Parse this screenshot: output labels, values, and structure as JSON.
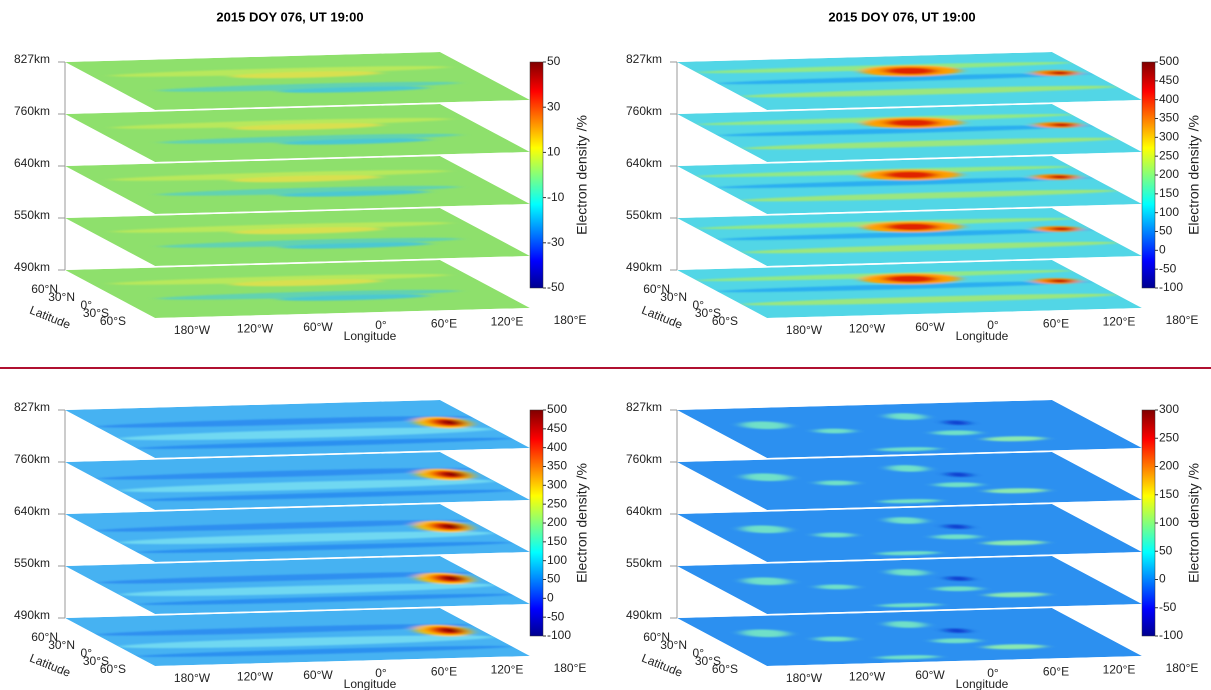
{
  "panels": [
    {
      "title": "2015 DOY 076, UT 19:00",
      "altitudes": [
        "827km",
        "760km",
        "640km",
        "550km",
        "490km"
      ],
      "latitude_label": "Latitude",
      "latitude_ticks": [
        "60°N",
        "30°N",
        "0°",
        "30°S",
        "60°S"
      ],
      "longitude_label": "Longitude",
      "longitude_ticks": [
        "180°W",
        "120°W",
        "60°W",
        "0°",
        "60°E",
        "120°E",
        "180°E"
      ],
      "colorbar_label": "Electron density /%",
      "colorbar_ticks": [
        50,
        30,
        10,
        -10,
        -30,
        -50
      ]
    },
    {
      "title": "2015 DOY 076, UT 19:00",
      "altitudes": [
        "827km",
        "760km",
        "640km",
        "550km",
        "490km"
      ],
      "latitude_label": "Latitude",
      "latitude_ticks": [
        "60°N",
        "30°N",
        "0°",
        "30°S",
        "60°S"
      ],
      "longitude_label": "Longitude",
      "longitude_ticks": [
        "180°W",
        "120°W",
        "60°W",
        "0°",
        "60°E",
        "120°E",
        "180°E"
      ],
      "colorbar_label": "Electron density /%",
      "colorbar_ticks": [
        500,
        450,
        400,
        350,
        300,
        250,
        200,
        150,
        100,
        50,
        0,
        -50,
        -100
      ]
    },
    {
      "altitudes": [
        "827km",
        "760km",
        "640km",
        "550km",
        "490km"
      ],
      "latitude_label": "Latitude",
      "latitude_ticks": [
        "60°N",
        "30°N",
        "0°",
        "30°S",
        "60°S"
      ],
      "longitude_label": "Longitude",
      "longitude_ticks": [
        "180°W",
        "120°W",
        "60°W",
        "0°",
        "60°E",
        "120°E",
        "180°E"
      ],
      "colorbar_label": "Electron density /%",
      "colorbar_ticks": [
        500,
        450,
        400,
        350,
        300,
        250,
        200,
        150,
        100,
        50,
        0,
        -50,
        -100
      ]
    },
    {
      "altitudes": [
        "827km",
        "760km",
        "640km",
        "550km",
        "490km"
      ],
      "latitude_label": "Latitude",
      "latitude_ticks": [
        "60°N",
        "30°N",
        "0°",
        "30°S",
        "60°S"
      ],
      "longitude_label": "Longitude",
      "longitude_ticks": [
        "180°W",
        "120°W",
        "60°W",
        "0°",
        "60°E",
        "120°E",
        "180°E"
      ],
      "colorbar_label": "Electron density /%",
      "colorbar_ticks": [
        300,
        250,
        200,
        150,
        100,
        50,
        0,
        -50,
        -100
      ]
    }
  ]
}
